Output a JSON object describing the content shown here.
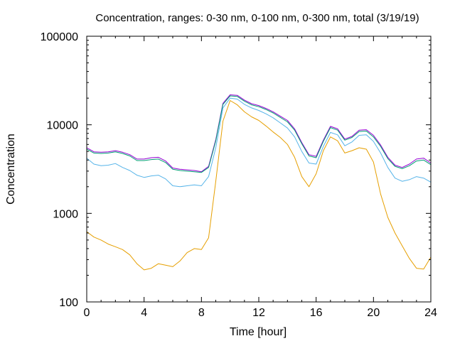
{
  "chart_data": {
    "type": "line",
    "title": "Concentration, ranges: 0-30 nm, 0-100 nm, 0-300 nm, total (3/19/19)",
    "xlabel": "Time [hour]",
    "ylabel": "Concentration",
    "xlim": [
      0,
      24
    ],
    "ylim": [
      100,
      100000
    ],
    "y_scale": "log",
    "grid": false,
    "legend": "none",
    "x_ticks": [
      0,
      4,
      8,
      12,
      16,
      20,
      24
    ],
    "x_tick_labels": [
      "0",
      "4",
      "8",
      "12",
      "16",
      "20",
      "24"
    ],
    "y_ticks": [
      100,
      1000,
      10000,
      100000
    ],
    "y_tick_labels": [
      "100",
      "1000",
      "10000",
      "100000"
    ],
    "colors": {
      "0-30 nm": "#e69f00",
      "0-100 nm": "#56b4e9",
      "0-300 nm": "#009e73",
      "total": "#9400d3",
      "axes": "#000000"
    },
    "series": [
      {
        "x": [
          0,
          0.5,
          1,
          1.5,
          2,
          2.5,
          3,
          3.5,
          4,
          4.5,
          5,
          5.5,
          6,
          6.5,
          7,
          7.5,
          8,
          8.5,
          9,
          9.5,
          10,
          10.5,
          11,
          11.5,
          12,
          12.5,
          13,
          13.5,
          14,
          14.5,
          15,
          15.5,
          16,
          16.5,
          17,
          17.5,
          18,
          18.5,
          19,
          19.5,
          20,
          20.5,
          21,
          21.5,
          22,
          22.5,
          23,
          23.5,
          24
        ],
        "values": [
          5500,
          4950,
          4900,
          4950,
          5100,
          4900,
          4600,
          4100,
          4100,
          4250,
          4300,
          3900,
          3250,
          3150,
          3100,
          3050,
          2950,
          3400,
          6800,
          17500,
          21800,
          21500,
          19000,
          17300,
          16500,
          15300,
          14000,
          12500,
          11200,
          9000,
          6300,
          4600,
          4400,
          6700,
          9600,
          9000,
          6900,
          7400,
          8700,
          8800,
          7600,
          5900,
          4300,
          3500,
          3300,
          3600,
          4100,
          4200,
          3700
        ]
      },
      {
        "x": [
          0,
          0.5,
          1,
          1.5,
          2,
          2.5,
          3,
          3.5,
          4,
          4.5,
          5,
          5.5,
          6,
          6.5,
          7,
          7.5,
          8,
          8.5,
          9,
          9.5,
          10,
          10.5,
          11,
          11.5,
          12,
          12.5,
          13,
          13.5,
          14,
          14.5,
          15,
          15.5,
          16,
          16.5,
          17,
          17.5,
          18,
          18.5,
          19,
          19.5,
          20,
          20.5,
          21,
          21.5,
          22,
          22.5,
          23,
          23.5,
          24
        ],
        "values": [
          5300,
          4800,
          4750,
          4800,
          4950,
          4750,
          4450,
          3950,
          3950,
          4050,
          4100,
          3750,
          3150,
          3050,
          3000,
          2950,
          2900,
          3300,
          6600,
          17000,
          21200,
          20900,
          18500,
          16800,
          16000,
          14900,
          13600,
          12100,
          10800,
          8700,
          6100,
          4450,
          4250,
          6500,
          9300,
          8700,
          6700,
          7200,
          8400,
          8500,
          7300,
          5700,
          4150,
          3400,
          3200,
          3450,
          3900,
          4000,
          3550
        ]
      },
      {
        "x": [
          0,
          0.5,
          1,
          1.5,
          2,
          2.5,
          3,
          3.5,
          4,
          4.5,
          5,
          5.5,
          6,
          6.5,
          7,
          7.5,
          8,
          8.5,
          9,
          9.5,
          10,
          10.5,
          11,
          11.5,
          12,
          12.5,
          13,
          13.5,
          14,
          14.5,
          15,
          15.5,
          16,
          16.5,
          17,
          17.5,
          18,
          18.5,
          19,
          19.5,
          20,
          20.5,
          21,
          21.5,
          22,
          22.5,
          23,
          23.5,
          24
        ],
        "values": [
          4200,
          3600,
          3450,
          3500,
          3650,
          3300,
          3050,
          2700,
          2550,
          2650,
          2700,
          2450,
          2050,
          2000,
          2050,
          2100,
          2050,
          2600,
          5500,
          15500,
          20000,
          19500,
          17000,
          15500,
          14500,
          13300,
          12000,
          10500,
          9200,
          7300,
          5000,
          3700,
          3600,
          5700,
          8200,
          7700,
          5800,
          6400,
          7600,
          7700,
          6500,
          4800,
          3300,
          2500,
          2300,
          2400,
          2600,
          2500,
          2250
        ]
      },
      {
        "x": [
          0,
          0.5,
          1,
          1.5,
          2,
          2.5,
          3,
          3.5,
          4,
          4.5,
          5,
          5.5,
          6,
          6.5,
          7,
          7.5,
          8,
          8.5,
          9,
          9.5,
          10,
          10.5,
          11,
          11.5,
          12,
          12.5,
          13,
          13.5,
          14,
          14.5,
          15,
          15.5,
          16,
          16.5,
          17,
          17.5,
          18,
          18.5,
          19,
          19.5,
          20,
          20.5,
          21,
          21.5,
          22,
          22.5,
          23,
          23.5,
          24
        ],
        "values": [
          620,
          540,
          500,
          450,
          420,
          390,
          340,
          270,
          230,
          240,
          270,
          260,
          250,
          290,
          360,
          400,
          390,
          530,
          2300,
          11000,
          18800,
          16800,
          14000,
          12300,
          11200,
          9700,
          8300,
          7200,
          6000,
          4300,
          2600,
          2000,
          2800,
          5100,
          7300,
          6600,
          4800,
          5100,
          5500,
          5300,
          3800,
          1650,
          900,
          600,
          430,
          310,
          240,
          235,
          320
        ]
      }
    ]
  }
}
